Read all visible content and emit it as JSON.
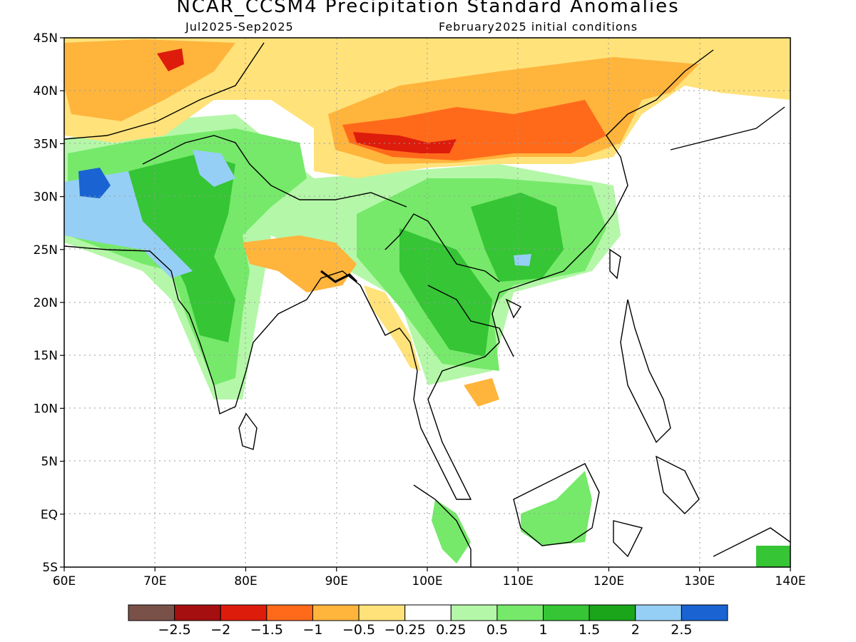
{
  "header": {
    "title": "NCAR_CCSM4 Precipitation Standard Anomalies",
    "period": "Jul2025-Sep2025",
    "init": "February2025 initial conditions"
  },
  "map": {
    "lon_range": [
      60,
      140
    ],
    "lat_range": [
      -5,
      45
    ],
    "lon_ticks": [
      "60E",
      "70E",
      "80E",
      "90E",
      "100E",
      "110E",
      "120E",
      "130E",
      "140E"
    ],
    "lat_ticks": [
      "45N",
      "40N",
      "35N",
      "30N",
      "25N",
      "20N",
      "15N",
      "10N",
      "5N",
      "EQ",
      "5S"
    ],
    "grid": "dotted"
  },
  "colorbar": {
    "colors": [
      "#7a5148",
      "#a50f0f",
      "#dd1c0c",
      "#ff6a1a",
      "#ffb43c",
      "#ffe27a",
      "#ffffff",
      "#b4f7a8",
      "#76e96a",
      "#35c535",
      "#1aa51a",
      "#96cff5",
      "#1964d2"
    ],
    "labels": [
      "-2.5",
      "-2",
      "-1.5",
      "-1",
      "-0.5",
      "-0.25",
      "0.25",
      "0.5",
      "1",
      "1.5",
      "2",
      "2.5"
    ]
  }
}
